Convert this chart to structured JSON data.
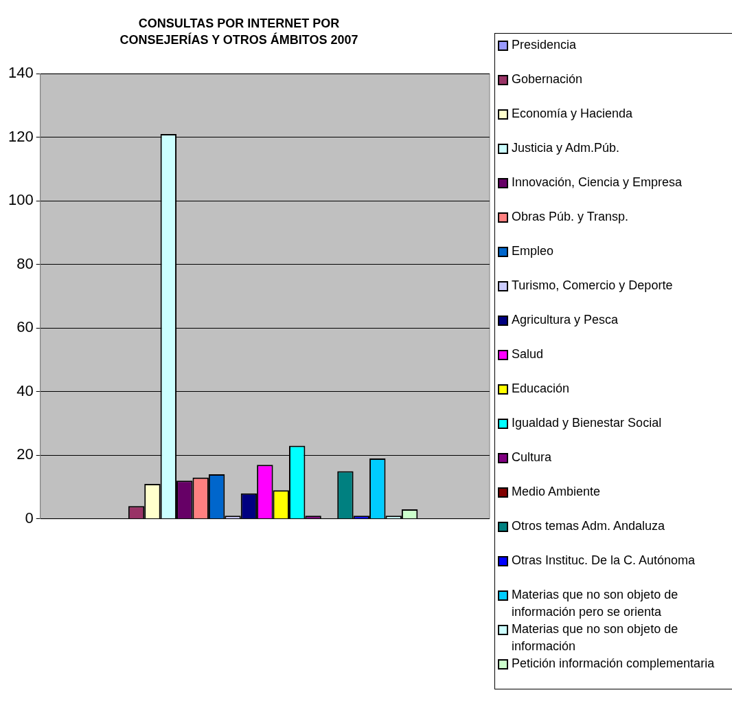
{
  "chart_data": {
    "type": "bar",
    "title": "CONSULTAS POR INTERNET POR CONSEJERÍAS Y OTROS ÁMBITOS 2007",
    "categories": [
      null
    ],
    "ylim": [
      0,
      140
    ],
    "yticks": [
      0,
      20,
      40,
      60,
      80,
      100,
      120,
      140
    ],
    "grid": "y",
    "legend": "right",
    "series": [
      {
        "name": "Presidencia",
        "color": "#9999ff",
        "values": [
          0
        ]
      },
      {
        "name": "Gobernación",
        "color": "#993366",
        "values": [
          4
        ]
      },
      {
        "name": "Economía y Hacienda",
        "color": "#ffffcc",
        "values": [
          11
        ]
      },
      {
        "name": "Justicia y Adm.Púb.",
        "color": "#ccffff",
        "values": [
          121
        ]
      },
      {
        "name": "Innovación, Ciencia y Empresa",
        "color": "#660066",
        "values": [
          12
        ]
      },
      {
        "name": "Obras Púb. y Transp.",
        "color": "#ff8080",
        "values": [
          13
        ]
      },
      {
        "name": "Empleo",
        "color": "#0066cc",
        "values": [
          14
        ]
      },
      {
        "name": "Turismo, Comercio y Deporte",
        "color": "#ccccff",
        "values": [
          1
        ]
      },
      {
        "name": "Agricultura y Pesca",
        "color": "#000080",
        "values": [
          8
        ]
      },
      {
        "name": "Salud",
        "color": "#ff00ff",
        "values": [
          17
        ]
      },
      {
        "name": "Educación",
        "color": "#ffff00",
        "values": [
          9
        ]
      },
      {
        "name": "Igualdad y Bienestar Social",
        "color": "#00ffff",
        "values": [
          23
        ]
      },
      {
        "name": "Cultura",
        "color": "#800080",
        "values": [
          1
        ]
      },
      {
        "name": "Medio Ambiente",
        "color": "#800000",
        "values": [
          0
        ]
      },
      {
        "name": "Otros temas Adm. Andaluza",
        "color": "#008080",
        "values": [
          15
        ]
      },
      {
        "name": "Otras Instituc. De la C. Autónoma",
        "color": "#0000ff",
        "values": [
          1
        ]
      },
      {
        "name": "Materias que no son objeto de información pero se orienta",
        "color": "#00ccff",
        "values": [
          19
        ]
      },
      {
        "name": "Materias que no son objeto de información",
        "color": "#ccffff",
        "values": [
          1
        ]
      },
      {
        "name": "Petición información complementaria",
        "color": "#ccffcc",
        "values": [
          3
        ]
      }
    ]
  }
}
